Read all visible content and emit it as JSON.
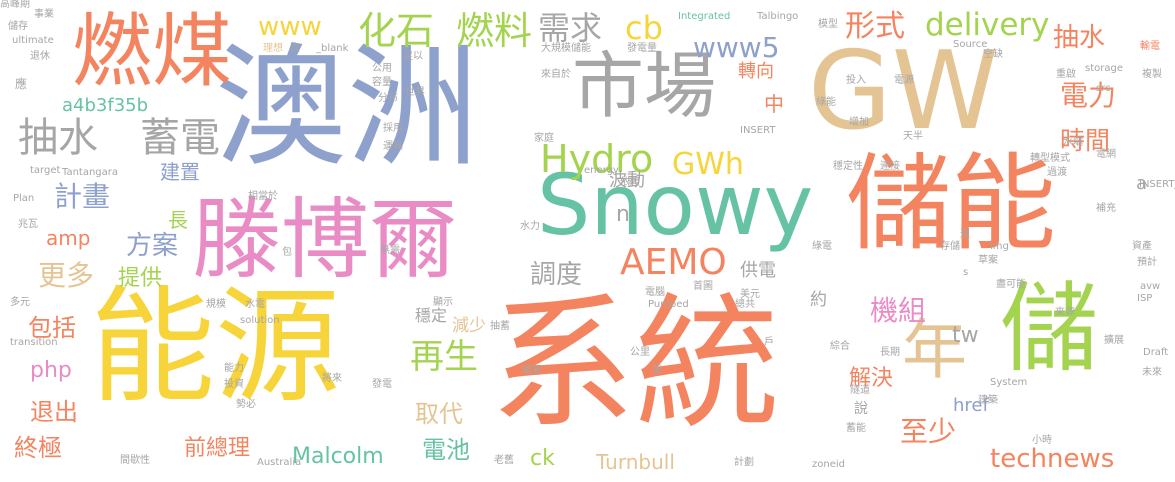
{
  "palette": {
    "orange": "#f4845f",
    "blue": "#8ea0cc",
    "gold": "#f7d43a",
    "pink": "#e98bc5",
    "green": "#66c2a5",
    "lime": "#a4d44f",
    "tan": "#e5c494",
    "gray": "#a6a6a6"
  },
  "words": [
    {
      "text": "系統",
      "color": "orange"
    },
    {
      "text": "澳洲",
      "color": "blue"
    },
    {
      "text": "能源",
      "color": "gold"
    },
    {
      "text": "GW",
      "color": "tan"
    },
    {
      "text": "儲能",
      "color": "orange"
    },
    {
      "text": "燃煤",
      "color": "orange"
    },
    {
      "text": "滕博爾",
      "color": "pink"
    },
    {
      "text": "Snowy",
      "color": "green"
    },
    {
      "text": "儲",
      "color": "lime"
    },
    {
      "text": "市場",
      "color": "gray"
    },
    {
      "text": "年",
      "color": "tan"
    },
    {
      "text": "抽水",
      "color": "gray"
    },
    {
      "text": "蓄電",
      "color": "gray"
    },
    {
      "text": "化石",
      "color": "lime"
    },
    {
      "text": "燃料",
      "color": "lime"
    },
    {
      "text": "需求",
      "color": "gray"
    },
    {
      "text": "cb",
      "color": "gold"
    },
    {
      "text": "形式",
      "color": "orange"
    },
    {
      "text": "delivery",
      "color": "lime"
    },
    {
      "text": "抽水",
      "color": "orange"
    },
    {
      "text": "電力",
      "color": "orange"
    },
    {
      "text": "www",
      "color": "gold"
    },
    {
      "text": "www5",
      "color": "blue"
    },
    {
      "text": "a4b3f35b",
      "color": "green"
    },
    {
      "text": "Hydro",
      "color": "lime"
    },
    {
      "text": "GWh",
      "color": "gold"
    },
    {
      "text": "時間",
      "color": "orange"
    },
    {
      "text": "轉向",
      "color": "orange"
    },
    {
      "text": "中",
      "color": "orange"
    },
    {
      "text": "計畫",
      "color": "blue"
    },
    {
      "text": "建置",
      "color": "blue"
    },
    {
      "text": "波動",
      "color": "gray"
    },
    {
      "text": "長",
      "color": "lime"
    },
    {
      "text": "amp",
      "color": "orange"
    },
    {
      "text": "方案",
      "color": "blue"
    },
    {
      "text": "AEMO",
      "color": "orange"
    },
    {
      "text": "調度",
      "color": "gray"
    },
    {
      "text": "供電",
      "color": "gray"
    },
    {
      "text": "約",
      "color": "gray"
    },
    {
      "text": "更多",
      "color": "tan"
    },
    {
      "text": "提供",
      "color": "lime"
    },
    {
      "text": "機組",
      "color": "pink"
    },
    {
      "text": "tw",
      "color": "gray"
    },
    {
      "text": "包括",
      "color": "orange"
    },
    {
      "text": "php",
      "color": "pink"
    },
    {
      "text": "再生",
      "color": "lime"
    },
    {
      "text": "解決",
      "color": "orange"
    },
    {
      "text": "穩定",
      "color": "gray"
    },
    {
      "text": "減少",
      "color": "tan"
    },
    {
      "text": "退出",
      "color": "orange"
    },
    {
      "text": "取代",
      "color": "tan"
    },
    {
      "text": "說",
      "color": "gray"
    },
    {
      "text": "至少",
      "color": "orange"
    },
    {
      "text": "href",
      "color": "blue"
    },
    {
      "text": "終極",
      "color": "orange"
    },
    {
      "text": "前總理",
      "color": "orange"
    },
    {
      "text": "電池",
      "color": "green"
    },
    {
      "text": "Malcolm",
      "color": "green"
    },
    {
      "text": "ck",
      "color": "lime"
    },
    {
      "text": "Turnbull",
      "color": "tan"
    },
    {
      "text": "technews",
      "color": "orange"
    },
    {
      "text": "a",
      "color": "gray"
    },
    {
      "text": "n",
      "color": "gray"
    },
    {
      "text": "事業",
      "color": "gray"
    },
    {
      "text": "儲存",
      "color": "gray"
    },
    {
      "text": "ultimate",
      "color": "gray"
    },
    {
      "text": "退休",
      "color": "gray"
    },
    {
      "text": "應",
      "color": "gray"
    },
    {
      "text": "Integrated",
      "color": "green"
    },
    {
      "text": "Talbingo",
      "color": "gray"
    },
    {
      "text": "大規模儲能",
      "color": "gray"
    },
    {
      "text": "發電量",
      "color": "gray"
    },
    {
      "text": "模型",
      "color": "gray"
    },
    {
      "text": "輸電",
      "color": "orange"
    },
    {
      "text": "_blank",
      "color": "gray"
    },
    {
      "text": "理想",
      "color": "tan"
    },
    {
      "text": "次",
      "color": "gray"
    },
    {
      "text": "公用",
      "color": "gray"
    },
    {
      "text": "容量",
      "color": "gray"
    },
    {
      "text": "足以",
      "color": "gray"
    },
    {
      "text": "來自於",
      "color": "gray"
    },
    {
      "text": "分布",
      "color": "gray"
    },
    {
      "text": "世界",
      "color": "gray"
    },
    {
      "text": "storage",
      "color": "gray"
    },
    {
      "text": "複製",
      "color": "gray"
    },
    {
      "text": "Source",
      "color": "gray"
    },
    {
      "text": "空缺",
      "color": "gray"
    },
    {
      "text": "投入",
      "color": "gray"
    },
    {
      "text": "電源",
      "color": "gray"
    },
    {
      "text": "重啟",
      "color": "gray"
    },
    {
      "text": "綠能",
      "color": "gray"
    },
    {
      "text": "增加",
      "color": "gray"
    },
    {
      "text": "天半",
      "color": "gray"
    },
    {
      "text": "水壩",
      "color": "gray"
    },
    {
      "text": "電網",
      "color": "gray"
    },
    {
      "text": "模式",
      "color": "gray"
    },
    {
      "text": "INSERT",
      "color": "gray"
    },
    {
      "text": "採用",
      "color": "gray"
    },
    {
      "text": "運輸",
      "color": "gray"
    },
    {
      "text": "家庭",
      "color": "gray"
    },
    {
      "text": "target",
      "color": "gray"
    },
    {
      "text": "Tantangara",
      "color": "gray"
    },
    {
      "text": "energy",
      "color": "gray"
    },
    {
      "text": "穩定性",
      "color": "gray"
    },
    {
      "text": "連接",
      "color": "gray"
    },
    {
      "text": "轉型",
      "color": "gray"
    },
    {
      "text": "過渡",
      "color": "gray"
    },
    {
      "text": "依賴",
      "color": "gray"
    },
    {
      "text": "INSERT_RANDOM_NUMBER_HERE",
      "color": "gray"
    },
    {
      "text": "Plan",
      "color": "gray"
    },
    {
      "text": "相當於",
      "color": "gray"
    },
    {
      "text": "補充",
      "color": "gray"
    },
    {
      "text": "水力",
      "color": "gray"
    },
    {
      "text": "兆瓦",
      "color": "gray"
    },
    {
      "text": "包",
      "color": "gray"
    },
    {
      "text": "無需",
      "color": "gray"
    },
    {
      "text": "週",
      "color": "gray"
    },
    {
      "text": "img",
      "color": "gray"
    },
    {
      "text": "資產",
      "color": "gray"
    },
    {
      "text": "綠電",
      "color": "gray"
    },
    {
      "text": "草案",
      "color": "gray"
    },
    {
      "text": "預計",
      "color": "gray"
    },
    {
      "text": "存儲",
      "color": "gray"
    },
    {
      "text": "s",
      "color": "gray"
    },
    {
      "text": "src",
      "color": "gray"
    },
    {
      "text": "電腦",
      "color": "gray"
    },
    {
      "text": "首圖",
      "color": "gray"
    },
    {
      "text": "盡可能",
      "color": "gray"
    },
    {
      "text": "老舊",
      "color": "gray"
    },
    {
      "text": "多元",
      "color": "gray"
    },
    {
      "text": "水電",
      "color": "gray"
    },
    {
      "text": "顯示",
      "color": "gray"
    },
    {
      "text": "美元",
      "color": "gray"
    },
    {
      "text": "avw",
      "color": "gray"
    },
    {
      "text": "ISP",
      "color": "gray"
    },
    {
      "text": "規模",
      "color": "gray"
    },
    {
      "text": "Pumped",
      "color": "gray"
    },
    {
      "text": "總共",
      "color": "gray"
    },
    {
      "text": "transition",
      "color": "gray"
    },
    {
      "text": "solution",
      "color": "gray"
    },
    {
      "text": "抽蓄",
      "color": "gray"
    },
    {
      "text": "來源",
      "color": "gray"
    },
    {
      "text": "擴展",
      "color": "gray"
    },
    {
      "text": "戶",
      "color": "gray"
    },
    {
      "text": "公里",
      "color": "gray"
    },
    {
      "text": "綜合",
      "color": "gray"
    },
    {
      "text": "長期",
      "color": "gray"
    },
    {
      "text": "Draft",
      "color": "gray"
    },
    {
      "text": "能力",
      "color": "gray"
    },
    {
      "text": "暖氣",
      "color": "gray"
    },
    {
      "text": "更",
      "color": "gray"
    },
    {
      "text": "未來",
      "color": "gray"
    },
    {
      "text": "將來",
      "color": "gray"
    },
    {
      "text": "投資",
      "color": "gray"
    },
    {
      "text": "發電",
      "color": "gray"
    },
    {
      "text": "隧道",
      "color": "gray"
    },
    {
      "text": "System",
      "color": "gray"
    },
    {
      "text": "勢必",
      "color": "gray"
    },
    {
      "text": "建築",
      "color": "gray"
    },
    {
      "text": "蓄能",
      "color": "gray"
    },
    {
      "text": "間歇性",
      "color": "gray"
    },
    {
      "text": "Australia",
      "color": "gray"
    },
    {
      "text": "計劃",
      "color": "gray"
    },
    {
      "text": "zoneid",
      "color": "gray"
    },
    {
      "text": "小時",
      "color": "gray"
    },
    {
      "text": "高峰期",
      "color": "gray"
    }
  ]
}
